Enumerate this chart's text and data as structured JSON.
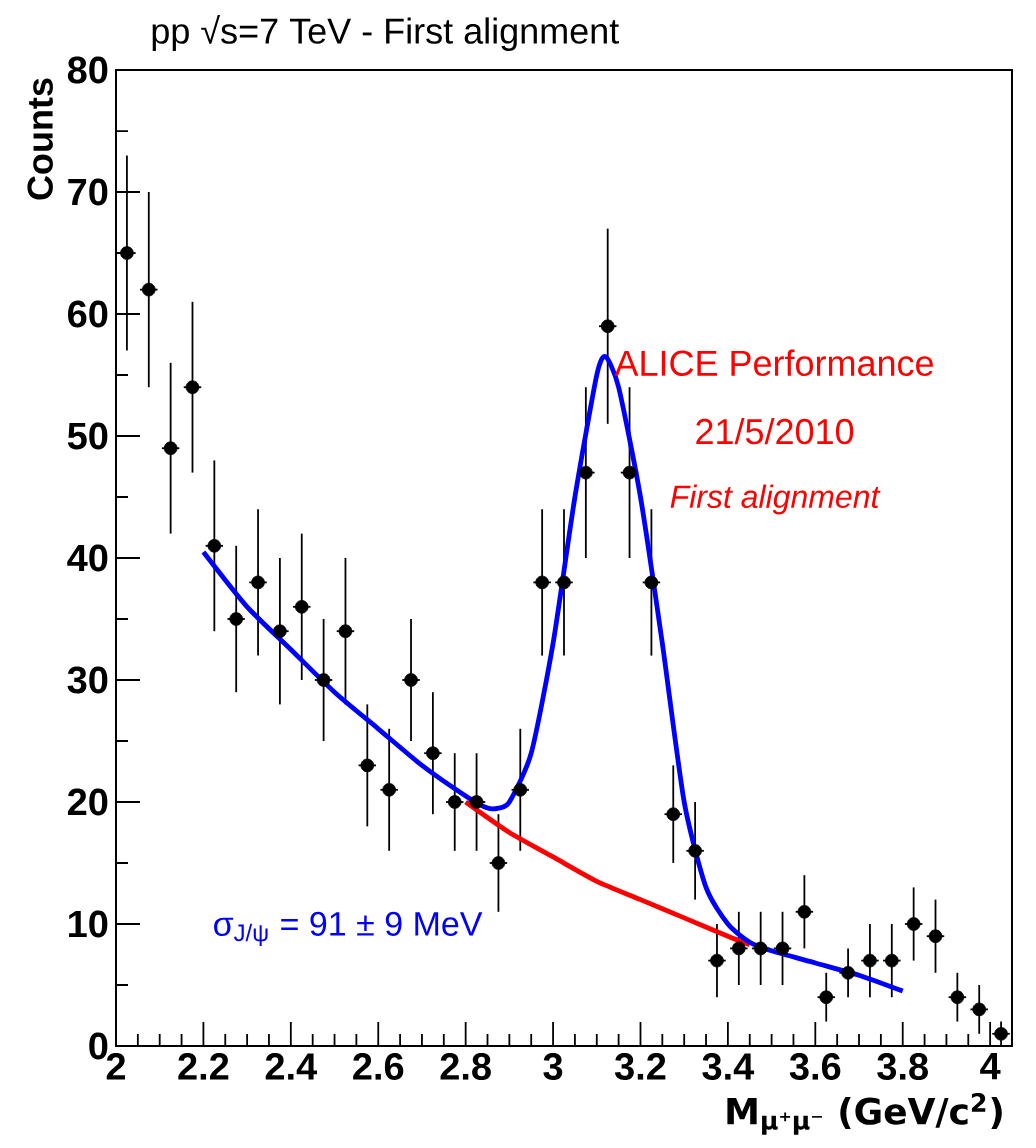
{
  "chart_data": {
    "type": "scatter",
    "title": "pp  √s=7 TeV - First alignment",
    "xlabel": "M$_{μ⁺μ⁻}$ (GeV/c$^{2}$)",
    "ylabel": "Counts",
    "xlim": [
      2,
      4.05
    ],
    "ylim": [
      0,
      80
    ],
    "xticks": [
      2,
      2.2,
      2.4,
      2.6,
      2.8,
      3,
      3.2,
      3.4,
      3.6,
      3.8,
      4
    ],
    "yticks": [
      0,
      10,
      20,
      30,
      40,
      50,
      60,
      70,
      80
    ],
    "grid": false,
    "annotations": [
      "ALICE Performance",
      "21/5/2010",
      "First alignment",
      "σ$_{J/ψ}$ = 91 ± 9 MeV"
    ],
    "series": [
      {
        "type": "scatter",
        "color": "#000000",
        "marker": "circle",
        "x": [
          2.025,
          2.075,
          2.125,
          2.175,
          2.225,
          2.275,
          2.325,
          2.375,
          2.425,
          2.475,
          2.525,
          2.575,
          2.625,
          2.675,
          2.725,
          2.775,
          2.825,
          2.875,
          2.925,
          2.975,
          3.025,
          3.075,
          3.125,
          3.175,
          3.225,
          3.275,
          3.325,
          3.375,
          3.425,
          3.475,
          3.525,
          3.575,
          3.625,
          3.675,
          3.725,
          3.775,
          3.825,
          3.875,
          3.925,
          3.975,
          4.025
        ],
        "values": [
          65,
          62,
          49,
          54,
          41,
          35,
          38,
          34,
          36,
          30,
          34,
          23,
          21,
          30,
          24,
          20,
          20,
          15,
          21,
          38,
          38,
          47,
          59,
          47,
          38,
          19,
          16,
          7,
          8,
          8,
          8,
          11,
          4,
          6,
          7,
          7,
          10,
          9,
          4,
          3,
          1
        ],
        "errors": [
          8,
          8,
          7,
          7,
          7,
          6,
          6,
          6,
          6,
          5,
          6,
          5,
          5,
          5,
          5,
          4,
          4,
          4,
          5,
          6,
          6,
          7,
          8,
          7,
          6,
          4,
          4,
          3,
          3,
          3,
          3,
          3,
          2,
          2,
          3,
          3,
          3,
          3,
          2,
          2,
          1
        ],
        "xerrors": [
          0.02,
          0.02,
          0.02,
          0.02,
          0.02,
          0.02,
          0.02,
          0.02,
          0.02,
          0.02,
          0.02,
          0.02,
          0.02,
          0.02,
          0.02,
          0.02,
          0.02,
          0.02,
          0.02,
          0.02,
          0.02,
          0.02,
          0.02,
          0.02,
          0.02,
          0.02,
          0.02,
          0.02,
          0.02,
          0.02,
          0.02,
          0.02,
          0.02,
          0.02,
          0.02,
          0.02,
          0.02,
          0.02,
          0.02,
          0.02,
          0.02
        ]
      },
      {
        "type": "line",
        "color": "#ff0000",
        "marker": "none",
        "line_style": "solid",
        "x": [
          2.8,
          2.9,
          3.0,
          3.1,
          3.2,
          3.3,
          3.4,
          3.45
        ],
        "values": [
          20,
          17.5,
          15.5,
          13.5,
          12,
          10.5,
          9,
          8.3
        ]
      },
      {
        "type": "line",
        "color": "#0000ff",
        "marker": "none",
        "line_style": "solid",
        "x": [
          2.2,
          2.3,
          2.4,
          2.5,
          2.6,
          2.7,
          2.8,
          2.85,
          2.875,
          2.9,
          2.95,
          3.0,
          3.05,
          3.1,
          3.12,
          3.15,
          3.2,
          3.25,
          3.3,
          3.35,
          3.4,
          3.45,
          3.5,
          3.6,
          3.7,
          3.8
        ],
        "values": [
          40.5,
          36,
          32.5,
          29,
          26,
          23,
          20.5,
          19.5,
          19.5,
          20,
          24,
          33,
          45,
          55,
          56.5,
          54,
          45,
          33,
          20,
          13,
          10,
          8.5,
          7.8,
          6.8,
          5.8,
          4.5
        ]
      }
    ]
  }
}
